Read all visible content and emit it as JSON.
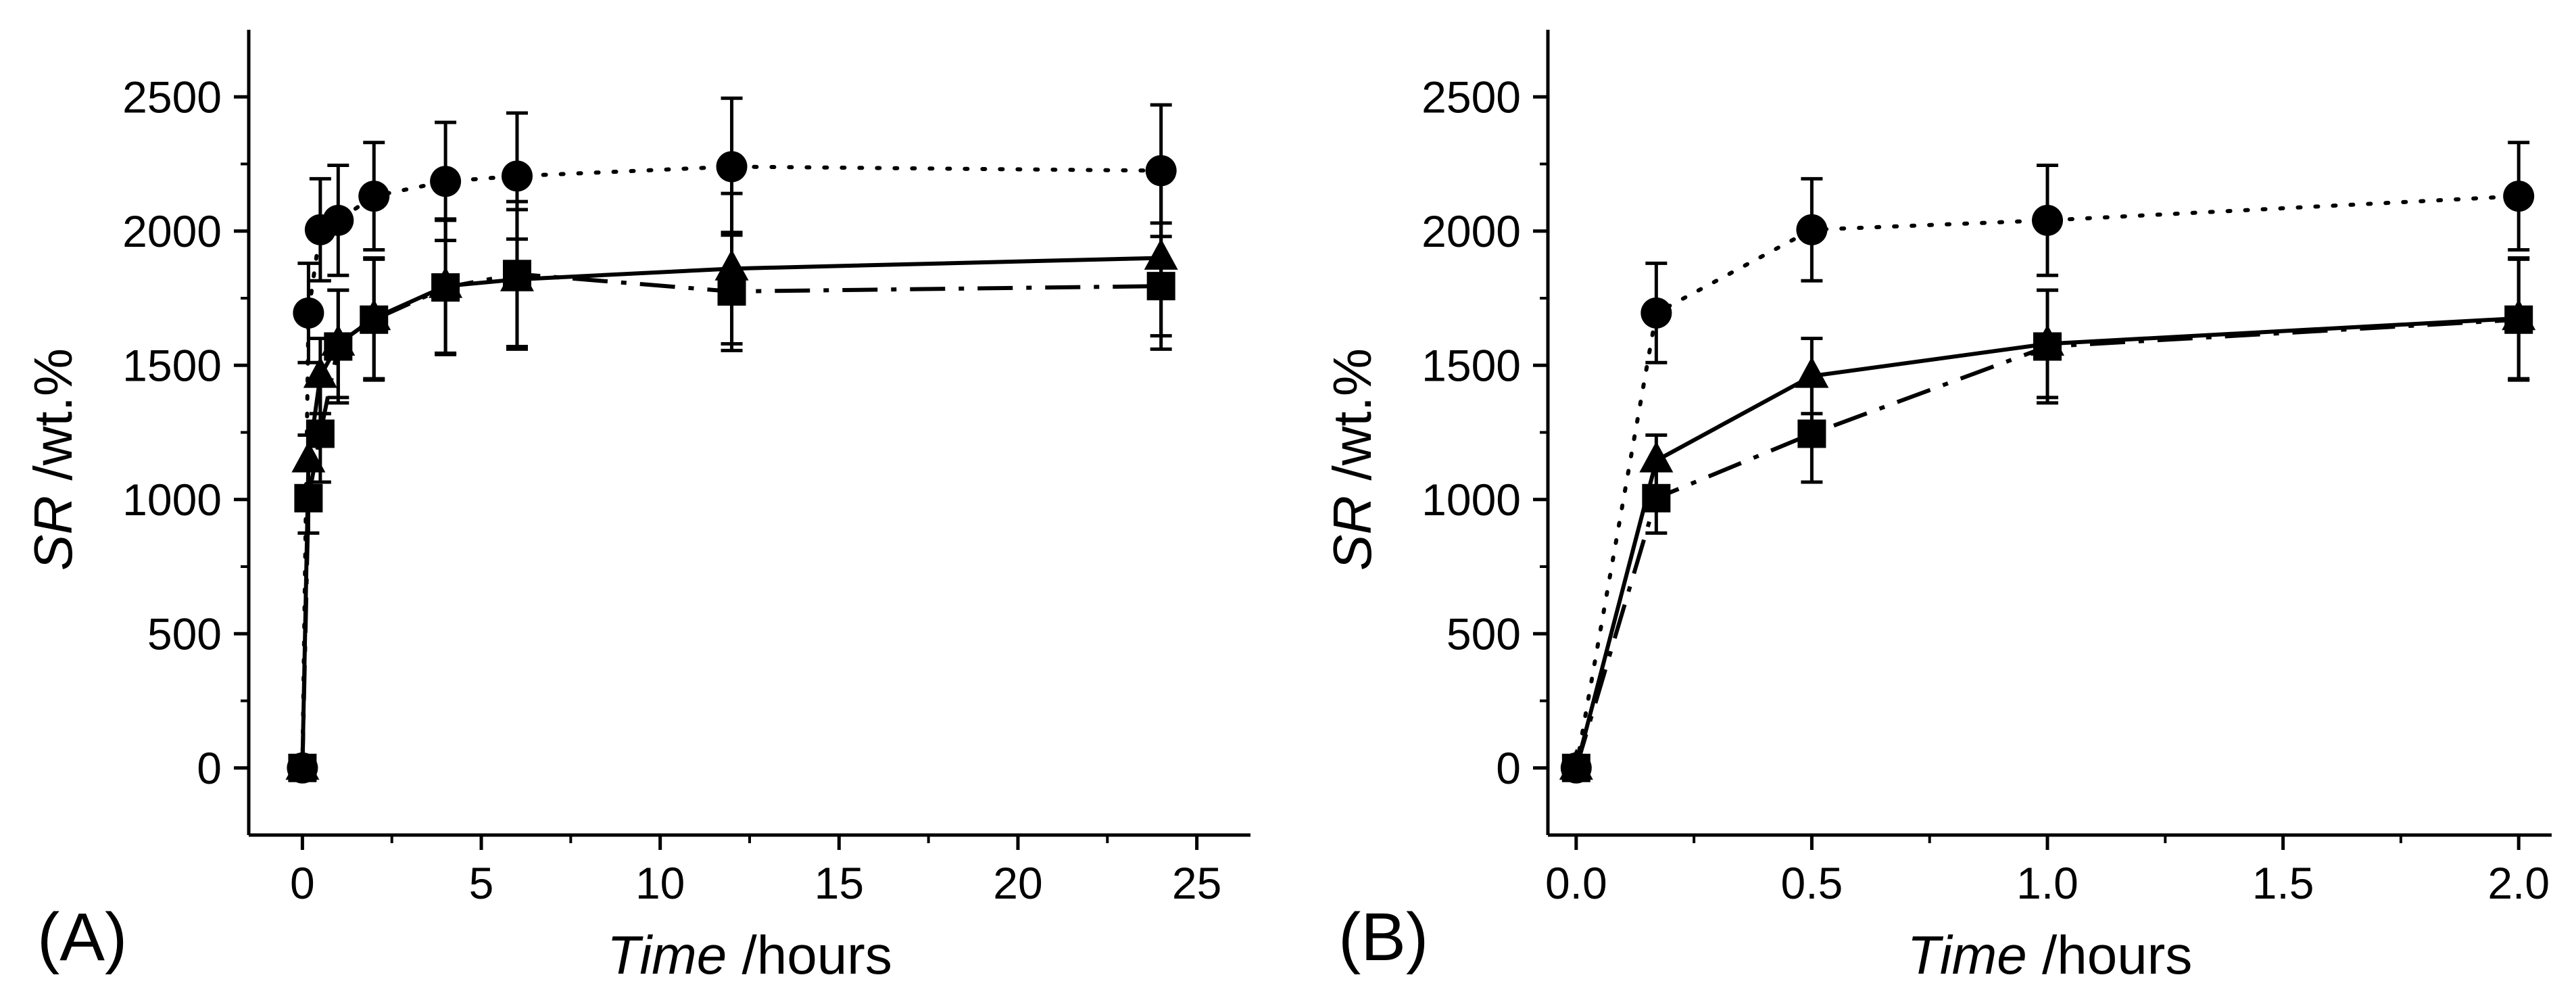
{
  "chart_data": [
    {
      "type": "line",
      "panel_label": "(A)",
      "xlabel_italic": "Time",
      "xlabel_rest": " /hours",
      "ylabel_italic": "SR",
      "ylabel_rest": " /wt.%",
      "xlim": [
        -1.5,
        26.5
      ],
      "ylim": [
        -250,
        2750
      ],
      "xticks": [
        0,
        5,
        10,
        15,
        20,
        25
      ],
      "xtick_labels": [
        "0",
        "5",
        "10",
        "15",
        "20",
        "25"
      ],
      "yticks": [
        0,
        500,
        1000,
        1500,
        2000,
        2500
      ],
      "ytick_labels": [
        "0",
        "500",
        "1000",
        "1500",
        "2000",
        "2500"
      ],
      "series": [
        {
          "name": "circle",
          "marker": "circle",
          "linestyle": "dotted",
          "x": [
            0,
            0.17,
            0.5,
            1,
            2,
            4,
            6,
            12,
            24
          ],
          "values": [
            0,
            1695,
            2005,
            2040,
            2130,
            2185,
            2205,
            2240,
            2225
          ],
          "errors": [
            0,
            185,
            190,
            205,
            200,
            220,
            235,
            255,
            245
          ]
        },
        {
          "name": "triangle",
          "marker": "triangle",
          "linestyle": "solid",
          "x": [
            0,
            0.17,
            0.5,
            1,
            2,
            4,
            6,
            12,
            24
          ],
          "values": [
            0,
            1145,
            1460,
            1580,
            1675,
            1795,
            1820,
            1860,
            1900
          ],
          "errors": [
            0,
            95,
            140,
            200,
            225,
            250,
            260,
            280,
            290
          ]
        },
        {
          "name": "square",
          "marker": "square",
          "linestyle": "dashdot",
          "x": [
            0,
            0.17,
            0.5,
            1,
            2,
            4,
            6,
            12,
            24
          ],
          "values": [
            0,
            1005,
            1245,
            1570,
            1670,
            1790,
            1840,
            1775,
            1795
          ],
          "errors": [
            0,
            130,
            180,
            210,
            225,
            250,
            270,
            220,
            235
          ]
        }
      ]
    },
    {
      "type": "line",
      "panel_label": "(B)",
      "xlabel_italic": "Time",
      "xlabel_rest": " /hours",
      "ylabel_italic": "SR",
      "ylabel_rest": " /wt.%",
      "xlim": [
        -0.06,
        2.07
      ],
      "ylim": [
        -250,
        2750
      ],
      "xticks": [
        0,
        0.5,
        1,
        1.5,
        2
      ],
      "xtick_labels": [
        "0.0",
        "0.5",
        "1.0",
        "1.5",
        "2.0"
      ],
      "yticks": [
        0,
        500,
        1000,
        1500,
        2000,
        2500
      ],
      "ytick_labels": [
        "0",
        "500",
        "1000",
        "1500",
        "2000",
        "2500"
      ],
      "series": [
        {
          "name": "circle",
          "marker": "circle",
          "linestyle": "dotted",
          "x": [
            0,
            0.17,
            0.5,
            1,
            2
          ],
          "values": [
            0,
            1695,
            2005,
            2040,
            2130
          ],
          "errors": [
            0,
            185,
            190,
            205,
            200
          ]
        },
        {
          "name": "triangle",
          "marker": "triangle",
          "linestyle": "solid",
          "x": [
            0,
            0.17,
            0.5,
            1,
            2
          ],
          "values": [
            0,
            1145,
            1460,
            1580,
            1675
          ],
          "errors": [
            0,
            95,
            140,
            200,
            225
          ]
        },
        {
          "name": "square",
          "marker": "square",
          "linestyle": "dashdot",
          "x": [
            0,
            0.17,
            0.5,
            1,
            2
          ],
          "values": [
            0,
            1005,
            1245,
            1570,
            1670
          ],
          "errors": [
            0,
            130,
            180,
            210,
            225
          ]
        }
      ]
    }
  ]
}
